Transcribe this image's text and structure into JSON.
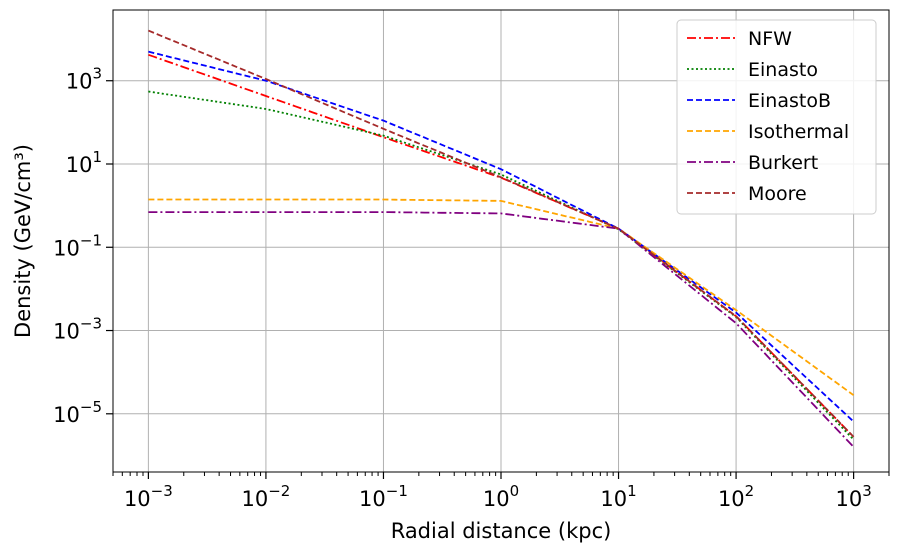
{
  "chart_data": {
    "type": "line",
    "title": "",
    "xlabel": "Radial distance (kpc)",
    "ylabel": "Density (GeV/cm³)",
    "xscale": "log",
    "yscale": "log",
    "xlim": [
      0.0005,
      2000
    ],
    "ylim": [
      4e-07,
      50000
    ],
    "grid": true,
    "legend_position": "top-right",
    "x_ticks": [
      {
        "base": "10",
        "exp": "−3",
        "value": 0.001
      },
      {
        "base": "10",
        "exp": "−2",
        "value": 0.01
      },
      {
        "base": "10",
        "exp": "−1",
        "value": 0.1
      },
      {
        "base": "10",
        "exp": "0",
        "value": 1
      },
      {
        "base": "10",
        "exp": "1",
        "value": 10
      },
      {
        "base": "10",
        "exp": "2",
        "value": 100
      },
      {
        "base": "10",
        "exp": "3",
        "value": 1000
      }
    ],
    "y_ticks": [
      {
        "base": "10",
        "exp": "3",
        "value": 1000
      },
      {
        "base": "10",
        "exp": "1",
        "value": 10
      },
      {
        "base": "10",
        "exp": "−1",
        "value": 0.1
      },
      {
        "base": "10",
        "exp": "−3",
        "value": 0.001
      },
      {
        "base": "10",
        "exp": "−5",
        "value": 1e-05
      }
    ],
    "x": [
      0.001,
      0.01,
      0.1,
      1,
      10,
      100,
      1000
    ],
    "series": [
      {
        "name": "NFW",
        "color": "#ff0000",
        "style": "dashdot",
        "values": [
          4200,
          430,
          44,
          4.7,
          0.28,
          0.0022,
          2.8e-06
        ]
      },
      {
        "name": "Einasto",
        "color": "#008000",
        "style": "dotted",
        "values": [
          550,
          210,
          48,
          5.6,
          0.27,
          0.0021,
          2.4e-06
        ]
      },
      {
        "name": "EinastoB",
        "color": "#0000ff",
        "style": "dashed",
        "values": [
          5000,
          1000,
          110,
          7.5,
          0.28,
          0.0027,
          6.5e-06
        ]
      },
      {
        "name": "Isothermal",
        "color": "#ffa500",
        "style": "dashed",
        "values": [
          1.4,
          1.4,
          1.4,
          1.3,
          0.28,
          0.0031,
          2.8e-05
        ]
      },
      {
        "name": "Burkert",
        "color": "#800080",
        "style": "dashdot",
        "values": [
          0.7,
          0.7,
          0.7,
          0.65,
          0.28,
          0.0015,
          1.6e-06
        ]
      },
      {
        "name": "Moore",
        "color": "#a52a2a",
        "style": "dashed",
        "values": [
          16000,
          1100,
          70,
          4.8,
          0.28,
          0.0022,
          2.8e-06
        ]
      }
    ]
  }
}
